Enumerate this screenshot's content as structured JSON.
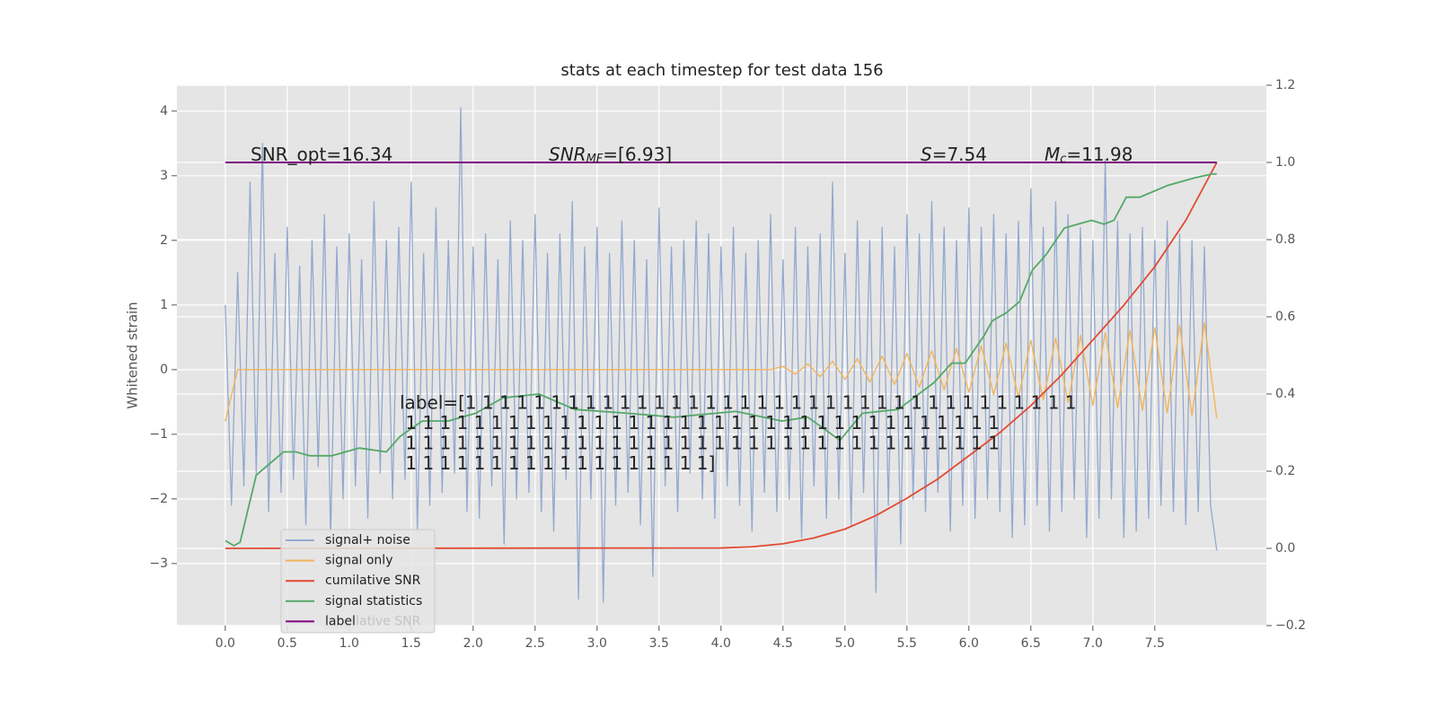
{
  "chart_data": {
    "type": "line",
    "title": "stats at each timestep for test data 156",
    "ylabel": "Whitened strain",
    "xlim": [
      -0.39,
      8.4
    ],
    "ylim": [
      -3.96,
      4.4
    ],
    "y2lim": [
      -0.2,
      1.2
    ],
    "grid": true,
    "legend_position": "lower left",
    "xticks": [
      {
        "value": 0,
        "label": "0.0"
      },
      {
        "value": 0.5,
        "label": "0.5"
      },
      {
        "value": 1,
        "label": "1.0"
      },
      {
        "value": 1.5,
        "label": "1.5"
      },
      {
        "value": 2,
        "label": "2.0"
      },
      {
        "value": 2.5,
        "label": "2.5"
      },
      {
        "value": 3,
        "label": "3.0"
      },
      {
        "value": 3.5,
        "label": "3.5"
      },
      {
        "value": 4,
        "label": "4.0"
      },
      {
        "value": 4.5,
        "label": "4.5"
      },
      {
        "value": 5,
        "label": "5.0"
      },
      {
        "value": 5.5,
        "label": "5.5"
      },
      {
        "value": 6,
        "label": "6.0"
      },
      {
        "value": 6.5,
        "label": "6.5"
      },
      {
        "value": 7,
        "label": "7.0"
      },
      {
        "value": 7.5,
        "label": "7.5"
      }
    ],
    "yticks": [
      {
        "value": -3,
        "label": "−3"
      },
      {
        "value": -2,
        "label": "−2"
      },
      {
        "value": -1,
        "label": "−1"
      },
      0,
      1,
      2,
      3,
      4
    ],
    "y2ticks": [
      {
        "value": -0.2,
        "label": "−0.2"
      },
      {
        "value": 0,
        "label": "0.0"
      },
      {
        "value": 0.2,
        "label": "0.2"
      },
      {
        "value": 0.4,
        "label": "0.4"
      },
      {
        "value": 0.6,
        "label": "0.6"
      },
      {
        "value": 0.8,
        "label": "0.8"
      },
      {
        "value": 1,
        "label": "1.0"
      },
      {
        "value": 1.2,
        "label": "1.2"
      }
    ],
    "series": [
      {
        "name": "signal+ noise",
        "color": "#93a9cf",
        "x": [
          0,
          0.05,
          0.1,
          0.15,
          0.2,
          0.25,
          0.3,
          0.35,
          0.4,
          0.45,
          0.5,
          0.55,
          0.6,
          0.65,
          0.7,
          0.75,
          0.8,
          0.85,
          0.9,
          0.95,
          1,
          1.05,
          1.1,
          1.15,
          1.2,
          1.25,
          1.3,
          1.35,
          1.4,
          1.45,
          1.5,
          1.55,
          1.6,
          1.65,
          1.7,
          1.75,
          1.8,
          1.85,
          1.9,
          1.95,
          2,
          2.05,
          2.1,
          2.15,
          2.2,
          2.25,
          2.3,
          2.35,
          2.4,
          2.45,
          2.5,
          2.55,
          2.6,
          2.65,
          2.7,
          2.75,
          2.8,
          2.85,
          2.9,
          2.95,
          3,
          3.05,
          3.1,
          3.15,
          3.2,
          3.25,
          3.3,
          3.35,
          3.4,
          3.45,
          3.5,
          3.55,
          3.6,
          3.65,
          3.7,
          3.75,
          3.8,
          3.85,
          3.9,
          3.95,
          4,
          4.05,
          4.1,
          4.15,
          4.2,
          4.25,
          4.3,
          4.35,
          4.4,
          4.45,
          4.5,
          4.55,
          4.6,
          4.65,
          4.7,
          4.75,
          4.8,
          4.85,
          4.9,
          4.95,
          5,
          5.05,
          5.1,
          5.15,
          5.2,
          5.25,
          5.3,
          5.35,
          5.4,
          5.45,
          5.5,
          5.55,
          5.6,
          5.65,
          5.7,
          5.75,
          5.8,
          5.85,
          5.9,
          5.95,
          6,
          6.05,
          6.1,
          6.15,
          6.2,
          6.25,
          6.3,
          6.35,
          6.4,
          6.45,
          6.5,
          6.55,
          6.6,
          6.65,
          6.7,
          6.75,
          6.8,
          6.85,
          6.9,
          6.95,
          7,
          7.05,
          7.1,
          7.15,
          7.2,
          7.25,
          7.3,
          7.35,
          7.4,
          7.45,
          7.5,
          7.55,
          7.6,
          7.65,
          7.7,
          7.75,
          7.8,
          7.85,
          7.9,
          7.95,
          8
        ],
        "values": [
          1.0,
          -2.1,
          1.5,
          -1.8,
          2.9,
          -1.6,
          3.5,
          -2.2,
          1.8,
          -1.9,
          2.2,
          -1.7,
          1.6,
          -2.4,
          2.0,
          -1.5,
          2.4,
          -2.6,
          1.9,
          -2.0,
          2.1,
          -1.8,
          1.7,
          -2.3,
          2.6,
          -1.6,
          2.0,
          -2.0,
          2.2,
          -1.7,
          2.9,
          -2.5,
          1.8,
          -2.1,
          2.5,
          -1.9,
          2.0,
          -1.6,
          4.05,
          -2.2,
          1.9,
          -2.3,
          2.1,
          -1.8,
          1.7,
          -2.7,
          2.3,
          -2.0,
          2.0,
          -1.9,
          2.4,
          -2.2,
          1.8,
          -2.5,
          2.1,
          -1.7,
          2.6,
          -3.55,
          1.9,
          -2.0,
          2.2,
          -3.6,
          1.8,
          -2.1,
          2.3,
          -1.9,
          2.0,
          -2.4,
          1.7,
          -3.2,
          2.5,
          -1.8,
          1.9,
          -2.2,
          2.0,
          -1.6,
          2.3,
          -2.0,
          2.1,
          -2.3,
          1.9,
          -1.8,
          2.2,
          -2.1,
          1.8,
          -2.5,
          2.0,
          -1.9,
          2.4,
          -2.2,
          1.7,
          -2.0,
          2.2,
          -2.6,
          1.9,
          -1.8,
          2.1,
          -2.3,
          2.9,
          -2.0,
          1.8,
          -2.4,
          2.3,
          -1.9,
          2.0,
          -3.45,
          2.2,
          -2.1,
          1.9,
          -2.7,
          2.4,
          -2.0,
          2.1,
          -2.2,
          2.6,
          -1.9,
          2.2,
          -2.5,
          2.0,
          -2.1,
          2.5,
          -2.3,
          2.2,
          -2.0,
          2.4,
          -2.2,
          2.1,
          -2.6,
          2.3,
          -2.4,
          2.8,
          -2.1,
          2.2,
          -2.5,
          2.6,
          -2.2,
          2.4,
          -2.0,
          2.2,
          -2.6,
          2.0,
          -2.3,
          3.25,
          -2.0,
          2.3,
          -2.6,
          2.1,
          -2.5,
          2.2,
          -2.3,
          2.0,
          -2.1,
          2.3,
          -2.2,
          2.1,
          -2.4,
          2.0,
          -2.2,
          1.9,
          -2.1,
          -2.8
        ]
      },
      {
        "name": "signal only",
        "color": "#f2b45c",
        "x": [
          0,
          0.1,
          4.4,
          4.5,
          4.6,
          4.7,
          4.8,
          4.9,
          5,
          5.1,
          5.2,
          5.3,
          5.4,
          5.5,
          5.6,
          5.7,
          5.8,
          5.9,
          6,
          6.1,
          6.2,
          6.3,
          6.4,
          6.5,
          6.6,
          6.7,
          6.8,
          6.9,
          7,
          7.1,
          7.2,
          7.3,
          7.4,
          7.5,
          7.6,
          7.7,
          7.8,
          7.9,
          8
        ],
        "values": [
          -0.8,
          0,
          0,
          0.05,
          -0.07,
          0.09,
          -0.11,
          0.13,
          -0.15,
          0.17,
          -0.19,
          0.21,
          -0.23,
          0.25,
          -0.27,
          0.29,
          -0.31,
          0.33,
          -0.35,
          0.37,
          -0.39,
          0.41,
          -0.43,
          0.45,
          -0.47,
          0.49,
          -0.51,
          0.53,
          -0.55,
          0.57,
          -0.59,
          0.61,
          -0.63,
          0.65,
          -0.67,
          0.69,
          -0.71,
          0.73,
          -0.75
        ]
      },
      {
        "name": "cumilative SNR",
        "color": "#e24a33",
        "axis": "y2",
        "x": [
          0,
          4,
          4.25,
          4.5,
          4.75,
          5,
          5.25,
          5.5,
          5.75,
          6,
          6.25,
          6.5,
          6.75,
          7,
          7.25,
          7.5,
          7.75,
          8
        ],
        "values": [
          0,
          0.001,
          0.004,
          0.012,
          0.027,
          0.05,
          0.085,
          0.13,
          0.18,
          0.24,
          0.3,
          0.37,
          0.45,
          0.54,
          0.63,
          0.73,
          0.85,
          1.0
        ]
      },
      {
        "name": "signal statistics",
        "color": "#55a868",
        "axis": "y2",
        "x": [
          0,
          0.07,
          0.12,
          0.25,
          0.36,
          0.47,
          0.57,
          0.68,
          0.86,
          1.08,
          1.3,
          1.41,
          1.59,
          1.8,
          2.02,
          2.24,
          2.53,
          2.82,
          3.25,
          3.62,
          4.12,
          4.49,
          4.7,
          4.96,
          5.14,
          5.43,
          5.72,
          5.86,
          5.97,
          6.12,
          6.19,
          6.3,
          6.41,
          6.51,
          6.62,
          6.77,
          6.88,
          6.99,
          7.09,
          7.17,
          7.27,
          7.38,
          7.6,
          7.82,
          7.96,
          8.0
        ],
        "values": [
          0.02,
          0.007,
          0.016,
          0.19,
          0.22,
          0.25,
          0.25,
          0.24,
          0.24,
          0.26,
          0.25,
          0.29,
          0.33,
          0.33,
          0.35,
          0.39,
          0.4,
          0.36,
          0.35,
          0.34,
          0.355,
          0.33,
          0.34,
          0.28,
          0.35,
          0.36,
          0.43,
          0.48,
          0.48,
          0.55,
          0.59,
          0.61,
          0.64,
          0.72,
          0.76,
          0.83,
          0.84,
          0.85,
          0.84,
          0.85,
          0.91,
          0.91,
          0.94,
          0.96,
          0.97,
          0.97
        ]
      },
      {
        "name": "label",
        "color": "#7f007f",
        "axis": "y2",
        "x": [
          0,
          8
        ],
        "values": [
          1,
          1
        ]
      }
    ],
    "legend_underlay": "cumilative SNR",
    "annotations": [
      {
        "text": "SNR_opt=16.34"
      },
      {
        "math": "SNR",
        "sub": "MF",
        "text": "=[6.93]"
      },
      {
        "math": "S",
        "text": "=7.54"
      },
      {
        "math": "M",
        "sub": "c",
        "text": "=11.98"
      }
    ],
    "label_text": [
      "label=[1 1 1 1 1 1 1 1 1 1 1 1 1 1 1 1 1 1 1 1 1 1 1 1 1 1 1 1 1 1 1 1 1 1 1 1",
      " 1 1 1 1 1 1 1 1 1 1 1 1 1 1 1 1 1 1 1 1 1 1 1 1 1 1 1 1 1 1 1 1 1 1 1",
      " 1 1 1 1 1 1 1 1 1 1 1 1 1 1 1 1 1 1 1 1 1 1 1 1 1 1 1 1 1 1 1 1 1 1 1",
      " 1 1 1 1 1 1 1 1 1 1 1 1 1 1 1 1 1 1]"
    ]
  }
}
